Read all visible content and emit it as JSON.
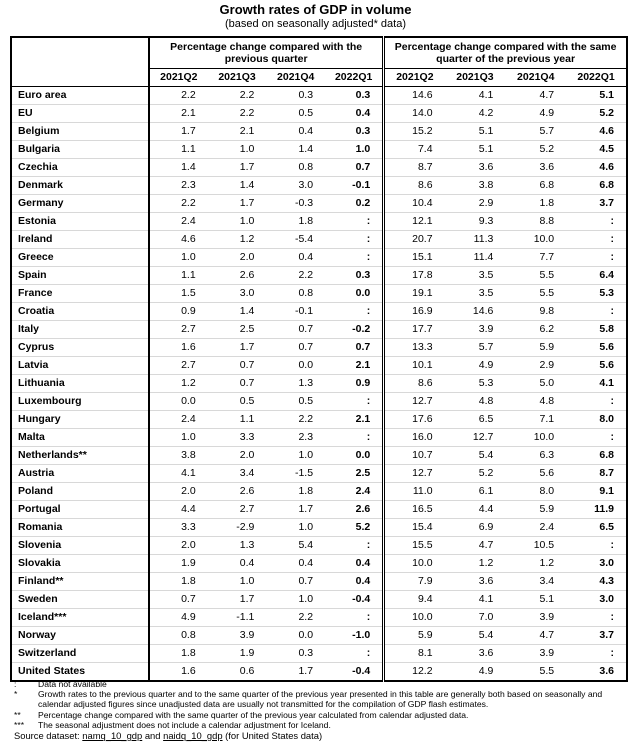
{
  "header": {
    "title": "Growth rates of GDP in volume",
    "subtitle": "(based on seasonally adjusted* data)"
  },
  "table": {
    "groups": [
      "Percentage change compared with the previous quarter",
      "Percentage change compared with the same quarter of the previous year"
    ],
    "columns": [
      "2021Q2",
      "2021Q3",
      "2021Q4",
      "2022Q1",
      "2021Q2",
      "2021Q3",
      "2021Q4",
      "2022Q1"
    ],
    "rows": [
      [
        "Euro area",
        "2.2",
        "2.2",
        "0.3",
        "0.3",
        "14.6",
        "4.1",
        "4.7",
        "5.1"
      ],
      [
        "EU",
        "2.1",
        "2.2",
        "0.5",
        "0.4",
        "14.0",
        "4.2",
        "4.9",
        "5.2"
      ],
      [
        "Belgium",
        "1.7",
        "2.1",
        "0.4",
        "0.3",
        "15.2",
        "5.1",
        "5.7",
        "4.6"
      ],
      [
        "Bulgaria",
        "1.1",
        "1.0",
        "1.4",
        "1.0",
        "7.4",
        "5.1",
        "5.2",
        "4.5"
      ],
      [
        "Czechia",
        "1.4",
        "1.7",
        "0.8",
        "0.7",
        "8.7",
        "3.6",
        "3.6",
        "4.6"
      ],
      [
        "Denmark",
        "2.3",
        "1.4",
        "3.0",
        "-0.1",
        "8.6",
        "3.8",
        "6.8",
        "6.8"
      ],
      [
        "Germany",
        "2.2",
        "1.7",
        "-0.3",
        "0.2",
        "10.4",
        "2.9",
        "1.8",
        "3.7"
      ],
      [
        "Estonia",
        "2.4",
        "1.0",
        "1.8",
        ":",
        "12.1",
        "9.3",
        "8.8",
        ":"
      ],
      [
        "Ireland",
        "4.6",
        "1.2",
        "-5.4",
        ":",
        "20.7",
        "11.3",
        "10.0",
        ":"
      ],
      [
        "Greece",
        "1.0",
        "2.0",
        "0.4",
        ":",
        "15.1",
        "11.4",
        "7.7",
        ":"
      ],
      [
        "Spain",
        "1.1",
        "2.6",
        "2.2",
        "0.3",
        "17.8",
        "3.5",
        "5.5",
        "6.4"
      ],
      [
        "France",
        "1.5",
        "3.0",
        "0.8",
        "0.0",
        "19.1",
        "3.5",
        "5.5",
        "5.3"
      ],
      [
        "Croatia",
        "0.9",
        "1.4",
        "-0.1",
        ":",
        "16.9",
        "14.6",
        "9.8",
        ":"
      ],
      [
        "Italy",
        "2.7",
        "2.5",
        "0.7",
        "-0.2",
        "17.7",
        "3.9",
        "6.2",
        "5.8"
      ],
      [
        "Cyprus",
        "1.6",
        "1.7",
        "0.7",
        "0.7",
        "13.3",
        "5.7",
        "5.9",
        "5.6"
      ],
      [
        "Latvia",
        "2.7",
        "0.7",
        "0.0",
        "2.1",
        "10.1",
        "4.9",
        "2.9",
        "5.6"
      ],
      [
        "Lithuania",
        "1.2",
        "0.7",
        "1.3",
        "0.9",
        "8.6",
        "5.3",
        "5.0",
        "4.1"
      ],
      [
        "Luxembourg",
        "0.0",
        "0.5",
        "0.5",
        ":",
        "12.7",
        "4.8",
        "4.8",
        ":"
      ],
      [
        "Hungary",
        "2.4",
        "1.1",
        "2.2",
        "2.1",
        "17.6",
        "6.5",
        "7.1",
        "8.0"
      ],
      [
        "Malta",
        "1.0",
        "3.3",
        "2.3",
        ":",
        "16.0",
        "12.7",
        "10.0",
        ":"
      ],
      [
        "Netherlands**",
        "3.8",
        "2.0",
        "1.0",
        "0.0",
        "10.7",
        "5.4",
        "6.3",
        "6.8"
      ],
      [
        "Austria",
        "4.1",
        "3.4",
        "-1.5",
        "2.5",
        "12.7",
        "5.2",
        "5.6",
        "8.7"
      ],
      [
        "Poland",
        "2.0",
        "2.6",
        "1.8",
        "2.4",
        "11.0",
        "6.1",
        "8.0",
        "9.1"
      ],
      [
        "Portugal",
        "4.4",
        "2.7",
        "1.7",
        "2.6",
        "16.5",
        "4.4",
        "5.9",
        "11.9"
      ],
      [
        "Romania",
        "3.3",
        "-2.9",
        "1.0",
        "5.2",
        "15.4",
        "6.9",
        "2.4",
        "6.5"
      ],
      [
        "Slovenia",
        "2.0",
        "1.3",
        "5.4",
        ":",
        "15.5",
        "4.7",
        "10.5",
        ":"
      ],
      [
        "Slovakia",
        "1.9",
        "0.4",
        "0.4",
        "0.4",
        "10.0",
        "1.2",
        "1.2",
        "3.0"
      ],
      [
        "Finland**",
        "1.8",
        "1.0",
        "0.7",
        "0.4",
        "7.9",
        "3.6",
        "3.4",
        "4.3"
      ],
      [
        "Sweden",
        "0.7",
        "1.7",
        "1.0",
        "-0.4",
        "9.4",
        "4.1",
        "5.1",
        "3.0"
      ],
      [
        "Iceland***",
        "4.9",
        "-1.1",
        "2.2",
        ":",
        "10.0",
        "7.0",
        "3.9",
        ":"
      ],
      [
        "Norway",
        "0.8",
        "3.9",
        "0.0",
        "-1.0",
        "5.9",
        "5.4",
        "4.7",
        "3.7"
      ],
      [
        "Switzerland",
        "1.8",
        "1.9",
        "0.3",
        ":",
        "8.1",
        "3.6",
        "3.9",
        ":"
      ],
      [
        "United States",
        "1.6",
        "0.6",
        "1.7",
        "-0.4",
        "12.2",
        "4.9",
        "5.5",
        "3.6"
      ]
    ]
  },
  "notes": [
    {
      "marker": ":",
      "text": "Data not available"
    },
    {
      "marker": "*",
      "text": "Growth rates to the previous quarter and to the same quarter of the previous year presented in this table are generally both based on seasonally and calendar adjusted figures since unadjusted data are usually not transmitted for the compilation of GDP flash estimates."
    },
    {
      "marker": "**",
      "text": "Percentage change compared with the same quarter of the previous year calculated from calendar adjusted data."
    },
    {
      "marker": "***",
      "text": "The seasonal adjustment does not include a calendar adjustment for Iceland."
    }
  ],
  "source": {
    "label": "Source dataset:",
    "link1": "namq_10_gdp",
    "and": "and",
    "link2": "naidq_10_gdp",
    "suffix": "(for United States data)"
  }
}
